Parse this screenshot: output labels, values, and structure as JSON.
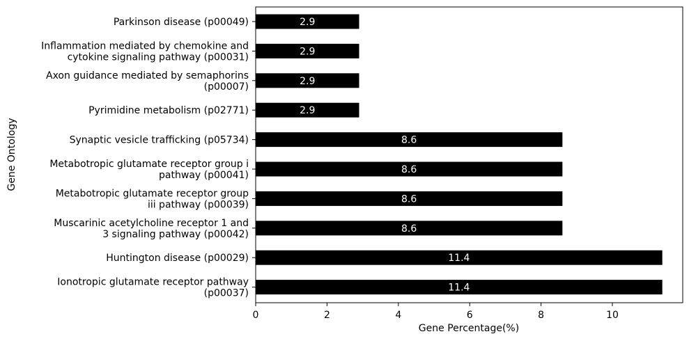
{
  "chart_data": {
    "type": "bar",
    "orientation": "horizontal",
    "xlabel": "Gene Percentage(%)",
    "ylabel": "Gene Ontology",
    "xlim": [
      0,
      12
    ],
    "xticks": [
      "0",
      "2",
      "4",
      "6",
      "8",
      "10"
    ],
    "grid": false,
    "bar_color": "#000000",
    "label_color": "#ffffff",
    "categories": [
      [
        "Parkinson disease (p00049)"
      ],
      [
        "Inflammation mediated by chemokine and",
        "cytokine signaling pathway (p00031)"
      ],
      [
        "Axon guidance mediated by semaphorins",
        "(p00007)"
      ],
      [
        "Pyrimidine metabolism (p02771)"
      ],
      [
        "Synaptic vesicle trafficking (p05734)"
      ],
      [
        "Metabotropic glutamate receptor group i",
        "pathway (p00041)"
      ],
      [
        "Metabotropic glutamate receptor group",
        "iii pathway (p00039)"
      ],
      [
        "Muscarinic acetylcholine receptor 1 and",
        "3 signaling pathway (p00042)"
      ],
      [
        "Huntington disease (p00029)"
      ],
      [
        "Ionotropic glutamate receptor pathway",
        "(p00037)"
      ]
    ],
    "values": [
      2.9,
      2.9,
      2.9,
      2.9,
      8.6,
      8.6,
      8.6,
      8.6,
      11.4,
      11.4
    ],
    "value_labels": [
      "2.9",
      "2.9",
      "2.9",
      "2.9",
      "8.6",
      "8.6",
      "8.6",
      "8.6",
      "11.4",
      "11.4"
    ]
  }
}
